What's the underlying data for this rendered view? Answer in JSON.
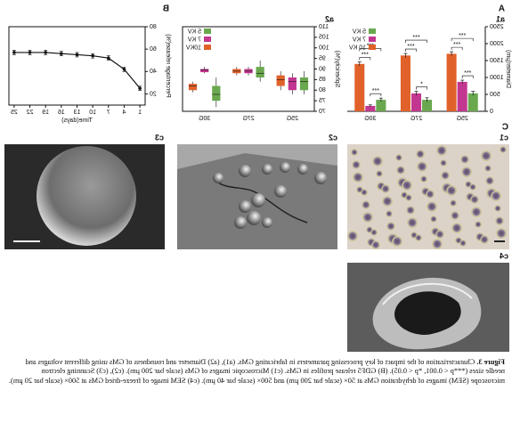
{
  "panels": {
    "A": "A",
    "a1": "a1",
    "a2": "a2",
    "B": "B",
    "C": "C",
    "c1": "c1",
    "c2": "c2",
    "c3": "c3",
    "c4": "c4"
  },
  "chart_data": [
    {
      "type": "bar",
      "y_label": "Diameter(μm)",
      "categories": [
        "25G",
        "27G",
        "30G"
      ],
      "series": [
        {
          "name": "5 KV",
          "color": "#6aa84f",
          "values": [
            530,
            340,
            340
          ],
          "errors": [
            60,
            60,
            50
          ]
        },
        {
          "name": "7 KV",
          "color": "#c2378f",
          "values": [
            870,
            530,
            160
          ],
          "errors": [
            50,
            60,
            30
          ]
        },
        {
          "name": "10 KV",
          "color": "#e0622a",
          "values": [
            1700,
            1650,
            1400
          ],
          "errors": [
            60,
            60,
            60
          ]
        }
      ],
      "significance": [
        [
          "***",
          "***",
          "***"
        ],
        [
          "*",
          "***",
          "***"
        ],
        [
          "***",
          "***",
          "***"
        ]
      ],
      "ylim": [
        0,
        2500
      ],
      "yticks": [
        0,
        500,
        1000,
        1500,
        2000,
        2500
      ],
      "legend": "top-right"
    },
    {
      "type": "box",
      "y_label": "Sphericity(%)",
      "categories": [
        "25G",
        "27G",
        "30G"
      ],
      "series": [
        {
          "name": "5 KV",
          "color": "#6aa84f",
          "min": [
            78,
            84,
            72
          ],
          "q1": [
            80,
            86,
            75
          ],
          "median": [
            84,
            88,
            78
          ],
          "q3": [
            86,
            91,
            82
          ],
          "max": [
            89,
            94,
            86
          ]
        },
        {
          "name": "7 KV",
          "color": "#c2378f",
          "min": [
            78,
            87,
            88
          ],
          "q1": [
            80,
            88,
            88.5
          ],
          "median": [
            84,
            89,
            89.5
          ],
          "q3": [
            86,
            90,
            90
          ],
          "max": [
            88,
            91,
            91
          ]
        },
        {
          "name": "10KV",
          "color": "#e0622a",
          "min": [
            80,
            87,
            79
          ],
          "q1": [
            82,
            88,
            80
          ],
          "median": [
            85,
            89,
            82
          ],
          "q3": [
            87,
            90,
            83
          ],
          "max": [
            89,
            91,
            84
          ]
        }
      ],
      "ylim": [
        70,
        110
      ],
      "yticks": [
        70,
        75,
        80,
        85,
        90,
        95,
        100,
        105,
        110
      ],
      "legend": "top-right"
    },
    {
      "type": "line",
      "x_label": "Time(days)",
      "y_label": "Percentage release(%)",
      "x": [
        1,
        4,
        7,
        10,
        13,
        16,
        19,
        22,
        25
      ],
      "series": [
        {
          "name": "GDF5",
          "color": "#111111",
          "values": [
            25,
            42,
            52,
            54,
            55,
            56,
            57,
            57,
            57
          ],
          "errors": [
            2,
            2,
            2,
            2,
            2,
            2,
            2,
            2,
            2
          ]
        }
      ],
      "xlim": [
        0,
        26
      ],
      "xticks": [
        1,
        4,
        7,
        10,
        13,
        16,
        19,
        22,
        25
      ],
      "ylim": [
        10,
        80
      ],
      "yticks": [
        20,
        40,
        60,
        80
      ]
    }
  ],
  "caption": {
    "label": "Figure 3.",
    "text": "Characterization of the impact of key processing parameters in fabricating GMs. (a1), (a2) Diameter and roundness of GMs using different voltages and needle sizes (***p < 0.001, *p < 0.05). (B) GDF5 release profiles in GMs. (c1) Microscopic images of GMs (scale bar 200 μm). (c2), (c3) Scanning electron microscope (SEM) images of dehydration GMs at 50× (scale bar 200 μm) and 500× (scale bar 40 μm). (c4) SEM image of freeze-dried GMs at 500× (scale bar 20 μm)."
  }
}
